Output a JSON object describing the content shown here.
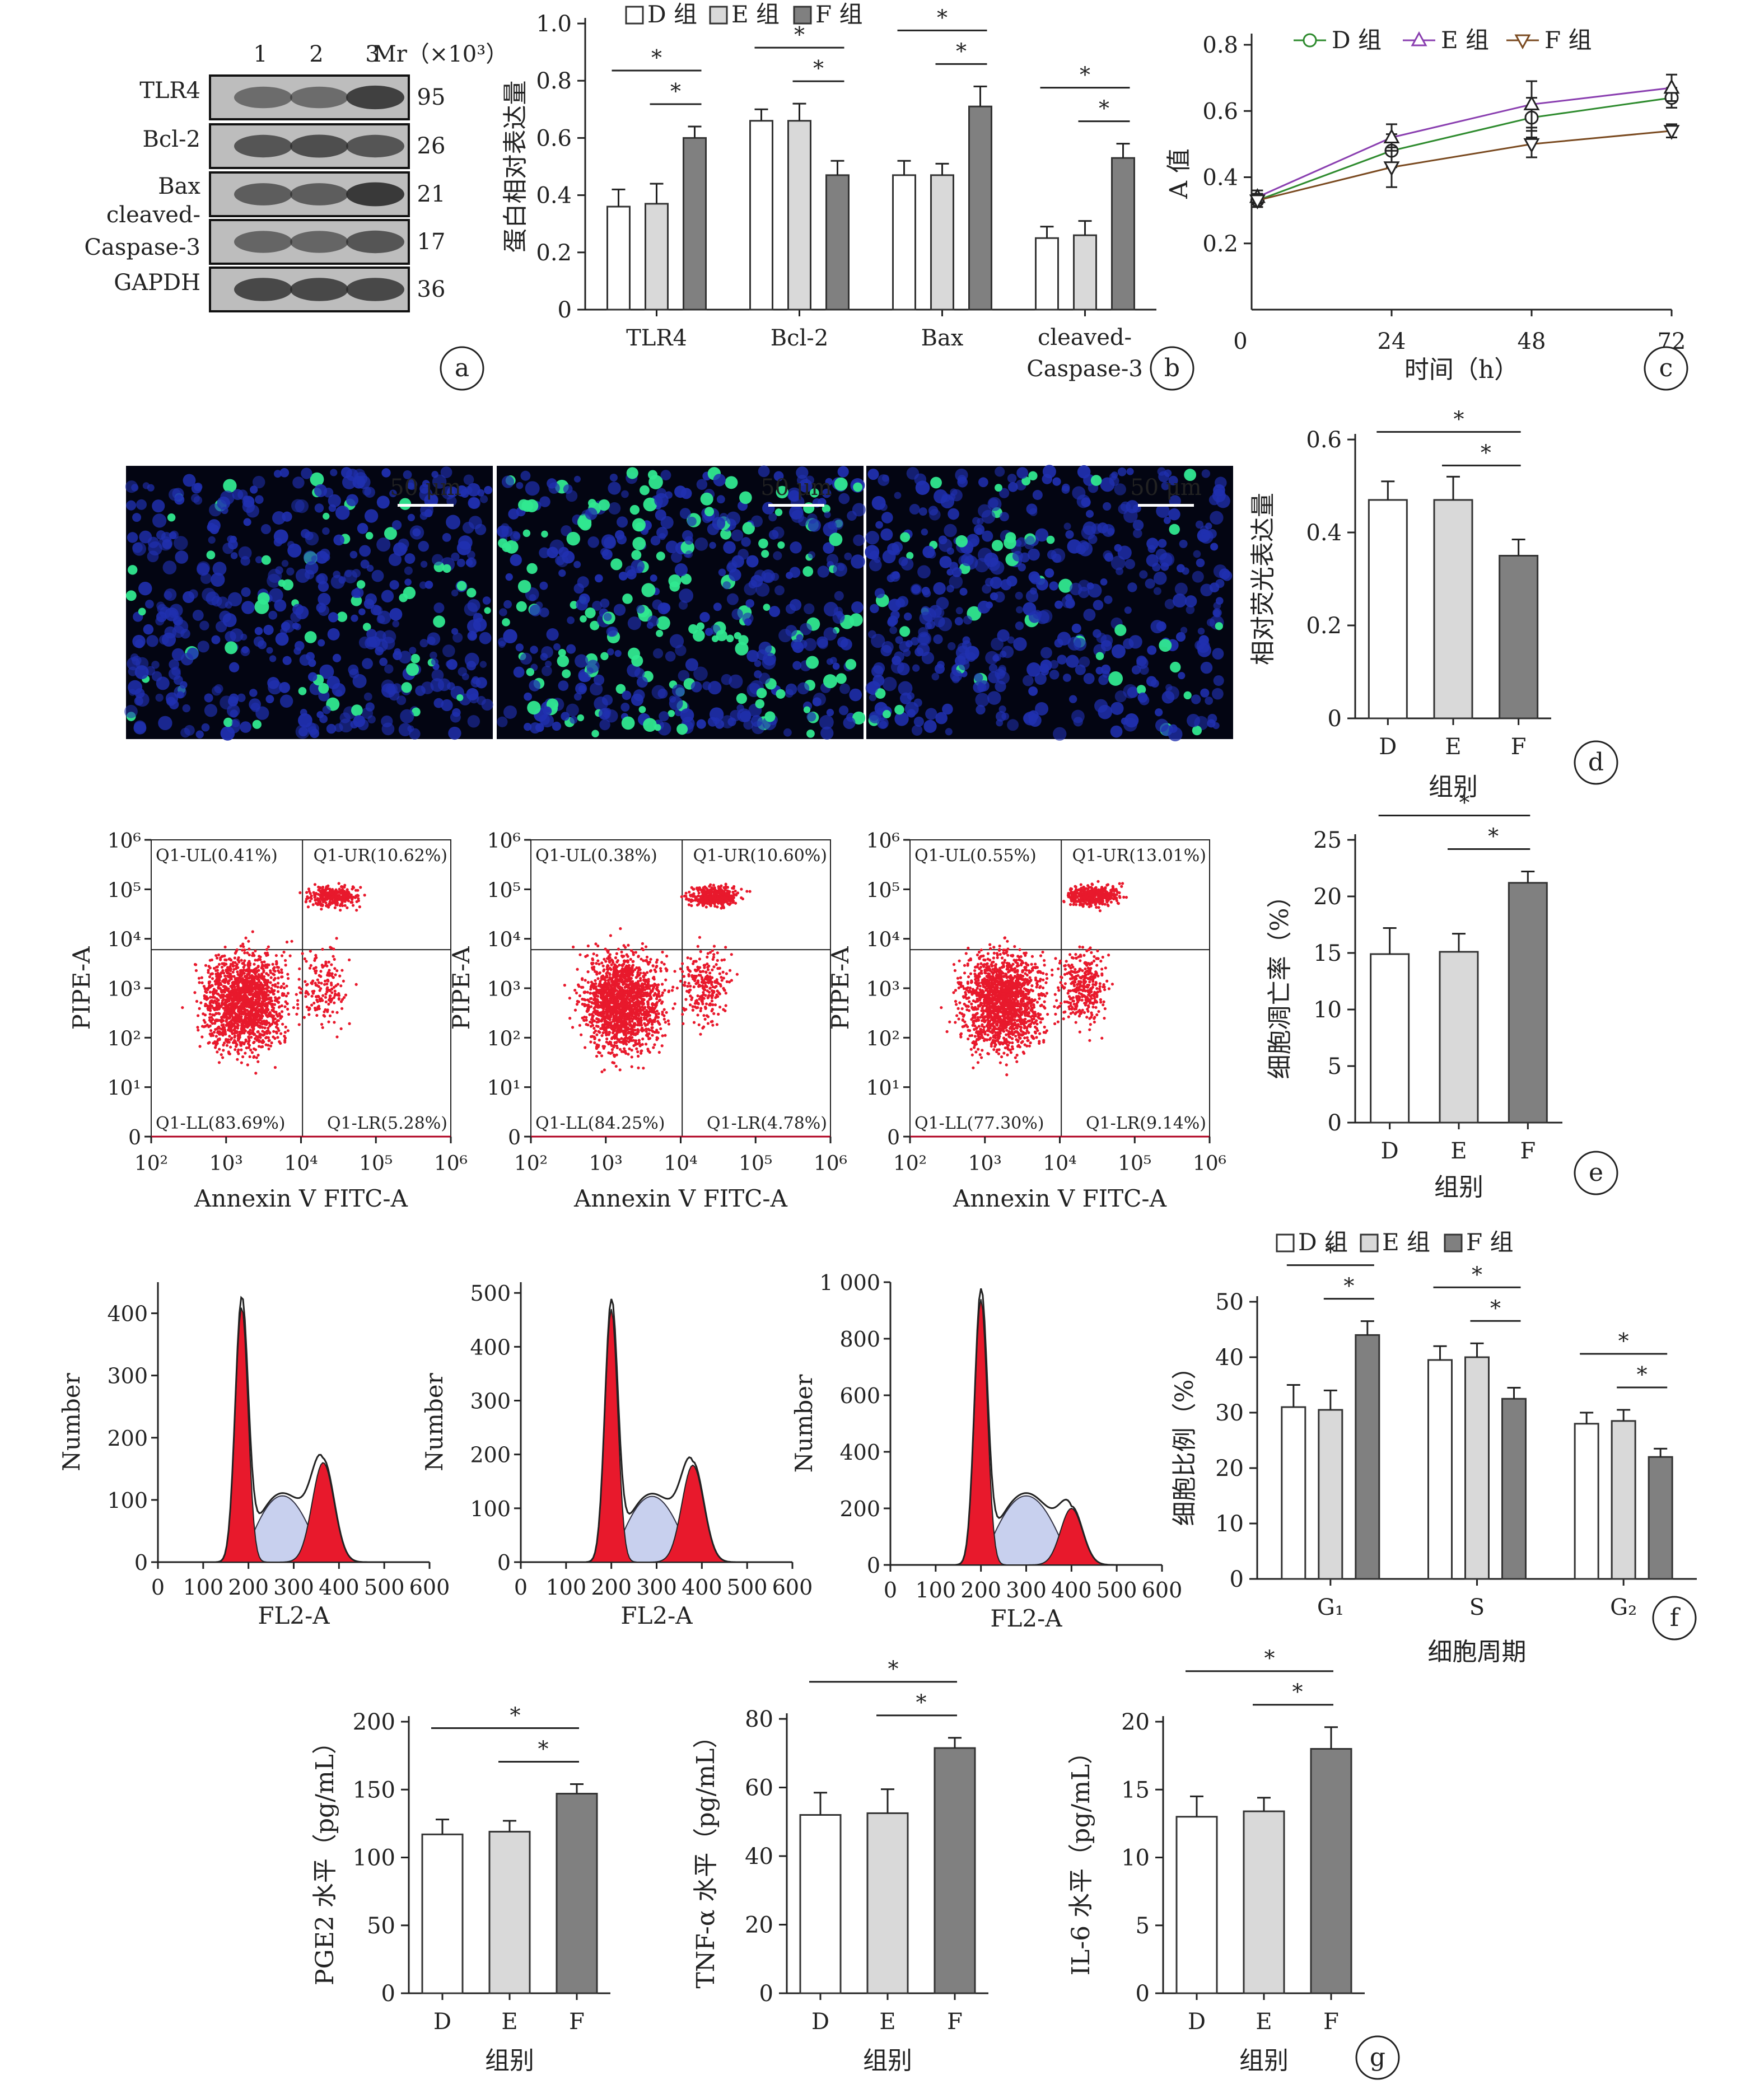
{
  "colors": {
    "D": "#ffffff",
    "E": "#d9d9d9",
    "F": "#808080",
    "red": "#e8192c",
    "nucleus": "#2030b0",
    "apoptotic": "#30e890",
    "lineD": "#2e8b2e",
    "lineE": "#8a3fb0",
    "lineF": "#7a4a20"
  },
  "legend_groups": [
    "D 组",
    "E 组",
    "F 组"
  ],
  "blot": {
    "lanes": [
      "1",
      "2",
      "3"
    ],
    "mr_header": "Mr（×10³）",
    "proteins": [
      "TLR4",
      "Bcl-2",
      "Bax",
      "cleaved-Caspase-3",
      "GAPDH"
    ],
    "mr_values": [
      "95",
      "26",
      "21",
      "17",
      "36"
    ],
    "panel_label": "a"
  },
  "chart_data": [
    {
      "panel": "b",
      "type": "bar",
      "ylabel": "蛋白相对表达量",
      "xlabel": "",
      "ylim": [
        0,
        1.0
      ],
      "yticks": [
        "0",
        "0.2",
        "0.4",
        "0.6",
        "0.8",
        "1.0"
      ],
      "categories": [
        "TLR4",
        "Bcl-2",
        "Bax",
        "cleaved-Caspase-3"
      ],
      "series": [
        {
          "name": "D 组",
          "values": [
            0.36,
            0.66,
            0.47,
            0.25
          ],
          "errors": [
            0.06,
            0.04,
            0.05,
            0.04
          ]
        },
        {
          "name": "E 组",
          "values": [
            0.37,
            0.66,
            0.47,
            0.26
          ],
          "errors": [
            0.07,
            0.06,
            0.04,
            0.05
          ]
        },
        {
          "name": "F 组",
          "values": [
            0.6,
            0.47,
            0.71,
            0.53
          ],
          "errors": [
            0.04,
            0.05,
            0.07,
            0.05
          ]
        }
      ],
      "significance": "*"
    },
    {
      "panel": "c",
      "type": "line",
      "ylabel": "A 值",
      "xlabel": "时间（h）",
      "x": [
        0,
        24,
        48,
        72
      ],
      "xticks": [
        "0",
        "24",
        "48",
        "72"
      ],
      "ylim": [
        0,
        0.8
      ],
      "yticks": [
        "0.2",
        "0.4",
        "0.6",
        "0.8"
      ],
      "series": [
        {
          "name": "D 组",
          "marker": "circle",
          "values": [
            0.33,
            0.48,
            0.58,
            0.64
          ],
          "errors": [
            0.02,
            0.05,
            0.06,
            0.03
          ]
        },
        {
          "name": "E 组",
          "marker": "triangle-up",
          "values": [
            0.34,
            0.52,
            0.62,
            0.67
          ],
          "errors": [
            0.02,
            0.04,
            0.07,
            0.04
          ]
        },
        {
          "name": "F 组",
          "marker": "triangle-down",
          "values": [
            0.33,
            0.43,
            0.5,
            0.54
          ],
          "errors": [
            0.02,
            0.06,
            0.04,
            0.02
          ]
        }
      ]
    },
    {
      "panel": "d",
      "type": "bar",
      "ylabel": "相对荧光表达量",
      "xlabel": "组别",
      "categories": [
        "D",
        "E",
        "F"
      ],
      "ylim": [
        0,
        0.6
      ],
      "yticks": [
        "0",
        "0.2",
        "0.4",
        "0.6"
      ],
      "values": [
        0.47,
        0.47,
        0.35
      ],
      "errors": [
        0.04,
        0.05,
        0.035
      ],
      "significance": "*"
    },
    {
      "panel": "e",
      "type": "bar",
      "ylabel": "细胞凋亡率（%）",
      "xlabel": "组别",
      "categories": [
        "D",
        "E",
        "F"
      ],
      "ylim": [
        0,
        25
      ],
      "yticks": [
        "0",
        "5",
        "10",
        "15",
        "20",
        "25"
      ],
      "values": [
        14.9,
        15.1,
        21.2
      ],
      "errors": [
        2.3,
        1.6,
        1.0
      ],
      "significance": "*"
    },
    {
      "panel": "f",
      "type": "bar",
      "ylabel": "细胞比例（%）",
      "xlabel": "细胞周期",
      "categories": [
        "G₁",
        "S",
        "G₂"
      ],
      "ylim": [
        0,
        50
      ],
      "yticks": [
        "0",
        "10",
        "20",
        "30",
        "40",
        "50"
      ],
      "series": [
        {
          "name": "D 组",
          "values": [
            31.0,
            39.5,
            28.0
          ],
          "errors": [
            4.0,
            2.5,
            2.0
          ]
        },
        {
          "name": "E 组",
          "values": [
            30.5,
            40.0,
            28.5
          ],
          "errors": [
            3.5,
            2.5,
            2.0
          ]
        },
        {
          "name": "F 组",
          "values": [
            44.0,
            32.5,
            22.0
          ],
          "errors": [
            2.5,
            2.0,
            1.5
          ]
        }
      ],
      "significance": "*"
    },
    {
      "panel": "g1",
      "type": "bar",
      "ylabel": "PGE2 水平（pg/mL）",
      "xlabel": "组别",
      "categories": [
        "D",
        "E",
        "F"
      ],
      "ylim": [
        0,
        200
      ],
      "yticks": [
        "0",
        "50",
        "100",
        "150",
        "200"
      ],
      "values": [
        117,
        119,
        147
      ],
      "errors": [
        11,
        8,
        7
      ],
      "significance": "*"
    },
    {
      "panel": "g2",
      "type": "bar",
      "ylabel": "TNF-α 水平（pg/mL）",
      "xlabel": "组别",
      "categories": [
        "D",
        "E",
        "F"
      ],
      "ylim": [
        0,
        80
      ],
      "yticks": [
        "0",
        "20",
        "40",
        "60",
        "80"
      ],
      "values": [
        52.0,
        52.5,
        71.5
      ],
      "errors": [
        6.5,
        7.0,
        3.0
      ],
      "significance": "*"
    },
    {
      "panel": "g3",
      "type": "bar",
      "ylabel": "IL-6 水平（pg/mL）",
      "xlabel": "组别",
      "categories": [
        "D",
        "E",
        "F"
      ],
      "ylim": [
        0,
        20
      ],
      "yticks": [
        "0",
        "5",
        "10",
        "15",
        "20"
      ],
      "values": [
        13.0,
        13.4,
        18.0
      ],
      "errors": [
        1.5,
        1.0,
        1.6
      ],
      "significance": "*"
    }
  ],
  "fluorescence": {
    "scale_label": "50 μm",
    "panels": 3
  },
  "flow": {
    "xlabel": "Annexin V FITC-A",
    "ylabel": "PIPE-A",
    "ticks": [
      "10²",
      "10³",
      "10⁴",
      "10⁵",
      "10⁶"
    ],
    "yticks": [
      "0",
      "10¹",
      "10²",
      "10³",
      "10⁴",
      "10⁵",
      "10⁶"
    ],
    "plots": [
      {
        "ul": "Q1-UL(0.41%)",
        "ur": "Q1-UR(10.62%)",
        "ll": "Q1-LL(83.69%)",
        "lr": "Q1-LR(5.28%)"
      },
      {
        "ul": "Q1-UL(0.38%)",
        "ur": "Q1-UR(10.60%)",
        "ll": "Q1-LL(84.25%)",
        "lr": "Q1-LR(4.78%)"
      },
      {
        "ul": "Q1-UL(0.55%)",
        "ur": "Q1-UR(13.01%)",
        "ll": "Q1-LL(77.30%)",
        "lr": "Q1-LR(9.14%)"
      }
    ]
  },
  "histograms": {
    "xlabel": "FL2-A",
    "ylabel": "Number",
    "xticks": [
      "0",
      "100",
      "200",
      "300",
      "400",
      "500",
      "600"
    ],
    "plots": [
      {
        "ymax": 450,
        "yticks": [
          "0",
          "100",
          "200",
          "300",
          "400"
        ],
        "g1": 410,
        "g2": 160
      },
      {
        "ymax": 520,
        "yticks": [
          "0",
          "100",
          "200",
          "300",
          "400",
          "500"
        ],
        "g1": 470,
        "g2": 180
      },
      {
        "ymax": 1000,
        "yticks": [
          "0",
          "200",
          "400",
          "600",
          "800",
          "1 000"
        ],
        "g1": 940,
        "g2": 200
      }
    ]
  },
  "panel_labels": [
    "a",
    "b",
    "c",
    "d",
    "e",
    "f",
    "g"
  ]
}
